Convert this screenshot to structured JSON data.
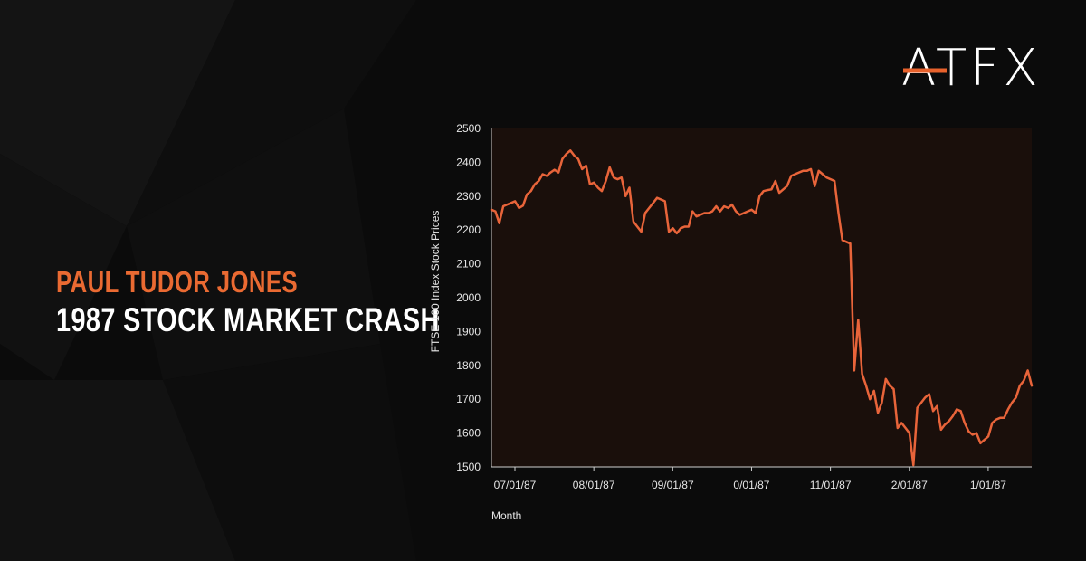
{
  "headline": {
    "line1": "PAUL TUDOR JONES",
    "line2": "1987 STOCK MARKET CRASH"
  },
  "logo": {
    "text": "ATFX",
    "accent_color": "#e8622c"
  },
  "colors": {
    "background": "#0b0b0b",
    "plot_background": "#1a0f0b",
    "line": "#e8643a",
    "headline_accent": "#ea6a32",
    "text": "#ffffff"
  },
  "chart_data": {
    "type": "line",
    "xlabel": "Month",
    "ylabel": "FTSE 100 Index Stock Prices",
    "ylim": [
      1500,
      2500
    ],
    "yticks": [
      1500,
      1600,
      1700,
      1800,
      1900,
      2000,
      2100,
      2200,
      2300,
      2400,
      2500
    ],
    "xtick_labels": [
      "07/01/87",
      "08/01/87",
      "09/01/87",
      "0/01/87",
      "11/01/87",
      "2/01/87",
      "1/01/87"
    ],
    "xtick_positions": [
      0,
      20,
      40,
      60,
      80,
      100,
      120
    ],
    "xlim": [
      0,
      137
    ],
    "grid": false,
    "series": [
      {
        "values": [
          [
            0,
            2260
          ],
          [
            1,
            2255
          ],
          [
            2,
            2220
          ],
          [
            3,
            2270
          ],
          [
            4,
            2275
          ],
          [
            5,
            2280
          ],
          [
            6,
            2285
          ],
          [
            7,
            2265
          ],
          [
            8,
            2272
          ],
          [
            9,
            2305
          ],
          [
            10,
            2315
          ],
          [
            11,
            2335
          ],
          [
            12,
            2345
          ],
          [
            13,
            2365
          ],
          [
            14,
            2360
          ],
          [
            15,
            2370
          ],
          [
            16,
            2378
          ],
          [
            17,
            2370
          ],
          [
            18,
            2410
          ],
          [
            19,
            2425
          ],
          [
            20,
            2435
          ],
          [
            21,
            2420
          ],
          [
            22,
            2410
          ],
          [
            23,
            2380
          ],
          [
            24,
            2390
          ],
          [
            25,
            2335
          ],
          [
            26,
            2340
          ],
          [
            27,
            2325
          ],
          [
            28,
            2315
          ],
          [
            29,
            2345
          ],
          [
            30,
            2385
          ],
          [
            31,
            2355
          ],
          [
            32,
            2350
          ],
          [
            33,
            2355
          ],
          [
            34,
            2300
          ],
          [
            35,
            2325
          ],
          [
            36,
            2225
          ],
          [
            37,
            2210
          ],
          [
            38,
            2195
          ],
          [
            39,
            2250
          ],
          [
            40,
            2265
          ],
          [
            41,
            2280
          ],
          [
            42,
            2295
          ],
          [
            43,
            2290
          ],
          [
            44,
            2285
          ],
          [
            45,
            2195
          ],
          [
            46,
            2205
          ],
          [
            47,
            2190
          ],
          [
            48,
            2205
          ],
          [
            49,
            2210
          ],
          [
            50,
            2210
          ],
          [
            51,
            2255
          ],
          [
            52,
            2240
          ],
          [
            53,
            2245
          ],
          [
            54,
            2250
          ],
          [
            55,
            2250
          ],
          [
            56,
            2255
          ],
          [
            57,
            2270
          ],
          [
            58,
            2255
          ],
          [
            59,
            2270
          ],
          [
            60,
            2265
          ],
          [
            61,
            2275
          ],
          [
            62,
            2255
          ],
          [
            63,
            2245
          ],
          [
            64,
            2250
          ],
          [
            65,
            2255
          ],
          [
            66,
            2260
          ],
          [
            67,
            2250
          ],
          [
            68,
            2300
          ],
          [
            69,
            2315
          ],
          [
            70,
            2318
          ],
          [
            71,
            2320
          ],
          [
            72,
            2345
          ],
          [
            73,
            2310
          ],
          [
            74,
            2320
          ],
          [
            75,
            2330
          ],
          [
            76,
            2360
          ],
          [
            77,
            2365
          ],
          [
            78,
            2370
          ],
          [
            79,
            2375
          ],
          [
            80,
            2375
          ],
          [
            81,
            2380
          ],
          [
            82,
            2330
          ],
          [
            83,
            2375
          ],
          [
            84,
            2365
          ],
          [
            85,
            2355
          ],
          [
            86,
            2350
          ],
          [
            87,
            2345
          ],
          [
            88,
            2250
          ],
          [
            89,
            2170
          ],
          [
            90,
            2165
          ],
          [
            91,
            2160
          ],
          [
            92,
            1785
          ],
          [
            93,
            1935
          ],
          [
            94,
            1775
          ],
          [
            95,
            1740
          ],
          [
            96,
            1700
          ],
          [
            97,
            1725
          ],
          [
            98,
            1660
          ],
          [
            99,
            1690
          ],
          [
            100,
            1760
          ],
          [
            101,
            1740
          ],
          [
            102,
            1730
          ],
          [
            103,
            1615
          ],
          [
            104,
            1630
          ],
          [
            105,
            1615
          ],
          [
            106,
            1600
          ],
          [
            107,
            1505
          ],
          [
            108,
            1675
          ],
          [
            109,
            1690
          ],
          [
            110,
            1705
          ],
          [
            111,
            1715
          ],
          [
            112,
            1665
          ],
          [
            113,
            1680
          ],
          [
            114,
            1610
          ],
          [
            115,
            1625
          ],
          [
            116,
            1635
          ],
          [
            117,
            1650
          ],
          [
            118,
            1670
          ],
          [
            119,
            1665
          ],
          [
            120,
            1630
          ],
          [
            121,
            1605
          ],
          [
            122,
            1595
          ],
          [
            123,
            1600
          ],
          [
            124,
            1570
          ],
          [
            125,
            1580
          ],
          [
            126,
            1590
          ],
          [
            127,
            1630
          ],
          [
            128,
            1640
          ],
          [
            129,
            1645
          ],
          [
            130,
            1645
          ],
          [
            131,
            1670
          ],
          [
            132,
            1690
          ],
          [
            133,
            1705
          ],
          [
            134,
            1740
          ],
          [
            135,
            1755
          ],
          [
            136,
            1785
          ],
          [
            137,
            1740
          ]
        ]
      }
    ]
  }
}
